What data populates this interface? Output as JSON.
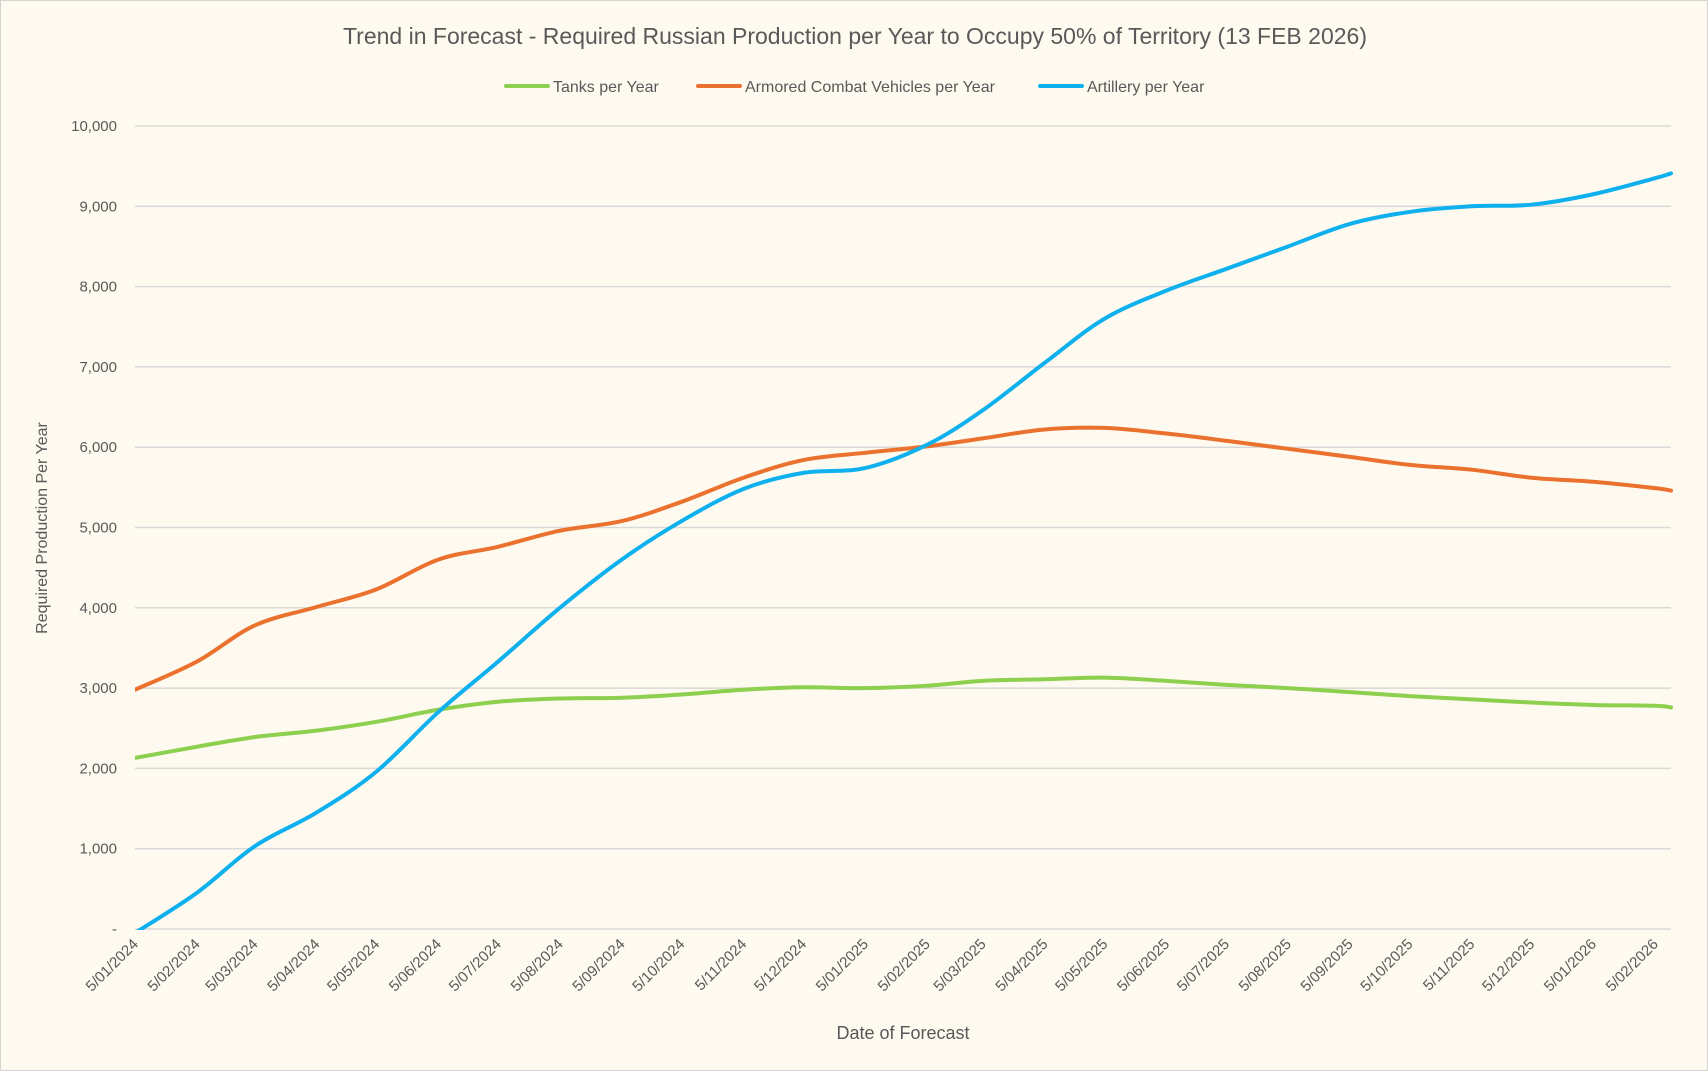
{
  "chart_data": {
    "type": "line",
    "title": "Trend in Forecast - Required Russian Production per Year to Occupy 50% of Territory (13 FEB 2026)",
    "xlabel": "Date of Forecast",
    "ylabel": "Required Production Per Year",
    "ylim": [
      0,
      10000
    ],
    "grid": true,
    "legend_position": "top",
    "y_ticks": [
      "-",
      "1,000",
      "2,000",
      "3,000",
      "4,000",
      "5,000",
      "6,000",
      "7,000",
      "8,000",
      "9,000",
      "10,000"
    ],
    "x_ticks": [
      "5/01/2024",
      "5/02/2024",
      "5/03/2024",
      "5/04/2024",
      "5/05/2024",
      "5/06/2024",
      "5/07/2024",
      "5/08/2024",
      "5/09/2024",
      "5/10/2024",
      "5/11/2024",
      "5/12/2024",
      "5/01/2025",
      "5/02/2025",
      "5/03/2025",
      "5/04/2025",
      "5/05/2025",
      "5/06/2025",
      "5/07/2025",
      "5/08/2025",
      "5/09/2025",
      "5/10/2025",
      "5/11/2025",
      "5/12/2025",
      "5/01/2026",
      "5/02/2026"
    ],
    "x": [
      "2024-01-05",
      "2024-02-05",
      "2024-03-05",
      "2024-04-05",
      "2024-05-05",
      "2024-06-05",
      "2024-07-05",
      "2024-08-05",
      "2024-09-05",
      "2024-10-05",
      "2024-11-05",
      "2024-12-05",
      "2025-01-05",
      "2025-02-05",
      "2025-03-05",
      "2025-04-05",
      "2025-05-05",
      "2025-06-05",
      "2025-07-05",
      "2025-08-05",
      "2025-09-05",
      "2025-10-05",
      "2025-11-05",
      "2025-12-05",
      "2026-01-05",
      "2026-02-05",
      "2026-02-13"
    ],
    "series": [
      {
        "name": "Tanks per Year",
        "color": "#8DCF4F",
        "values": [
          2130,
          2270,
          2390,
          2470,
          2580,
          2730,
          2830,
          2870,
          2880,
          2920,
          2980,
          3010,
          3000,
          3030,
          3090,
          3110,
          3130,
          3090,
          3040,
          3000,
          2950,
          2900,
          2860,
          2820,
          2790,
          2780,
          2760
        ]
      },
      {
        "name": "Armored Combat Vehicles per Year",
        "color": "#EB712E",
        "values": [
          2980,
          3330,
          3780,
          4010,
          4230,
          4600,
          4760,
          4960,
          5080,
          5320,
          5620,
          5840,
          5930,
          6010,
          6110,
          6220,
          6240,
          6170,
          6080,
          5980,
          5880,
          5780,
          5720,
          5620,
          5570,
          5490,
          5460
        ]
      },
      {
        "name": "Artillery per Year",
        "color": "#0FB0EE",
        "values": [
          -50,
          450,
          1030,
          1450,
          1960,
          2700,
          3330,
          4000,
          4600,
          5080,
          5480,
          5680,
          5740,
          6030,
          6460,
          7050,
          7600,
          7950,
          8220,
          8500,
          8780,
          8930,
          9000,
          9020,
          9150,
          9350,
          9410
        ]
      }
    ]
  }
}
